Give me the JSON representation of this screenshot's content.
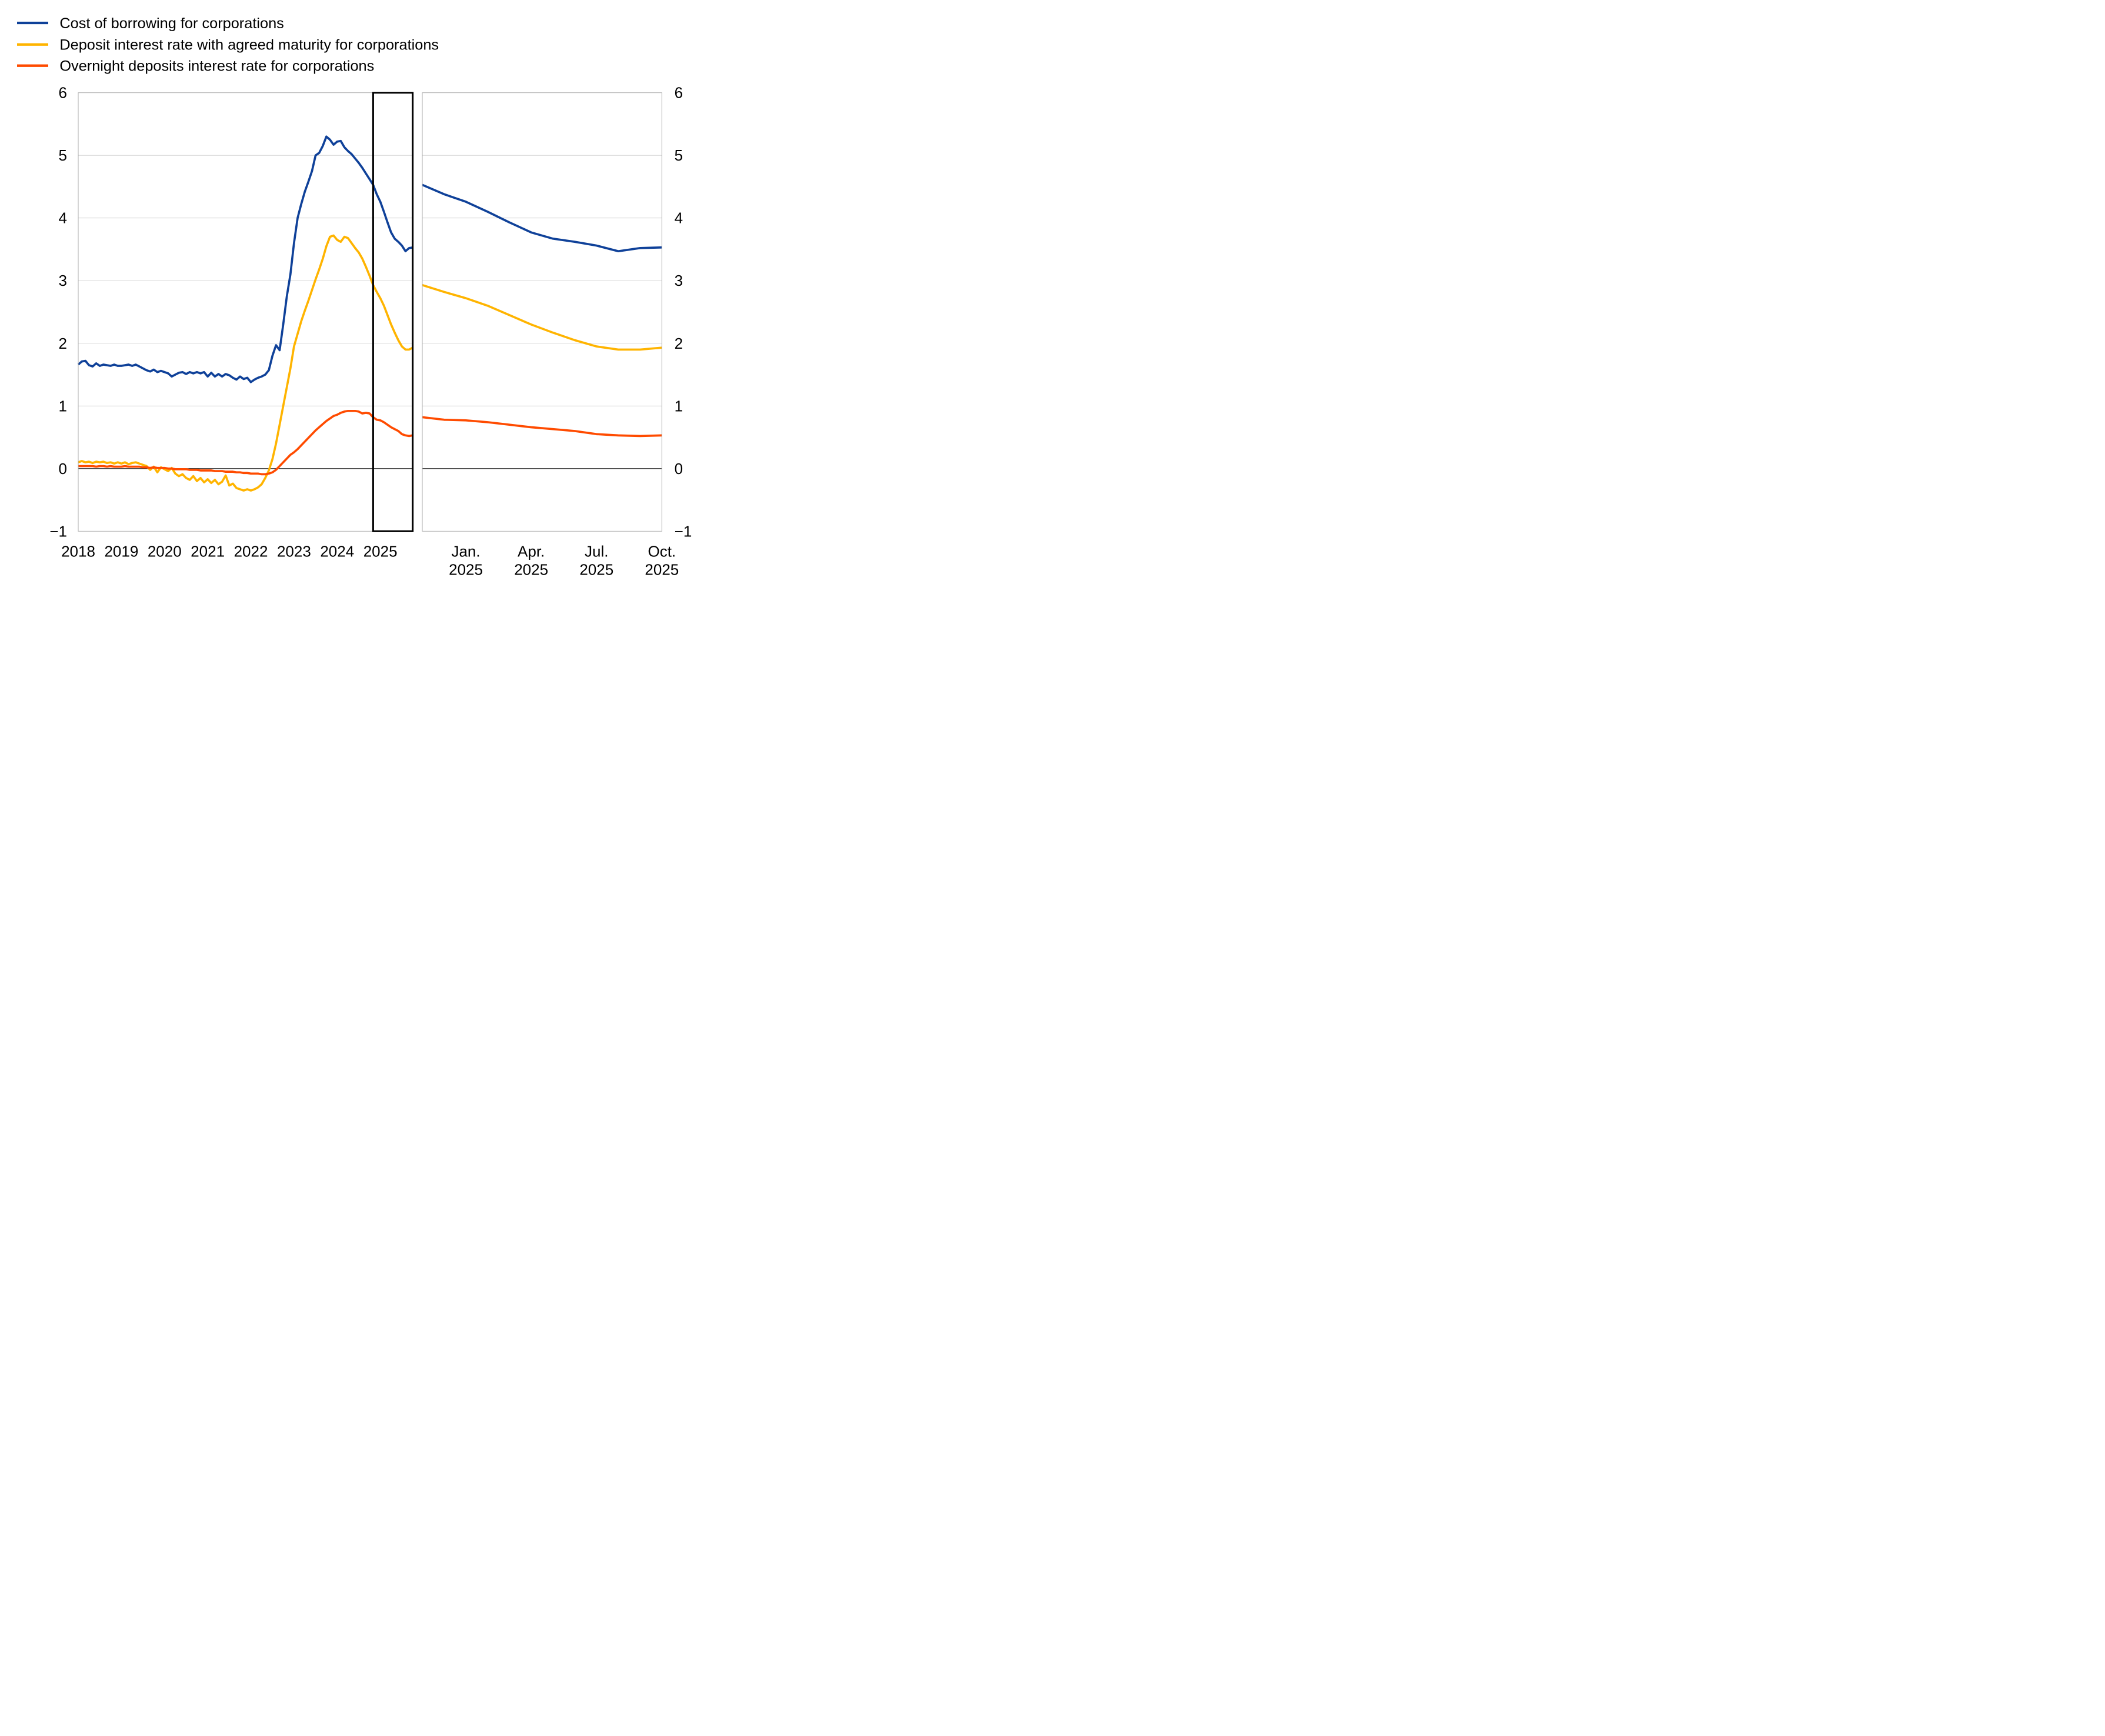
{
  "legend": {
    "items": [
      {
        "id": "cost-of-borrowing",
        "label": "Cost of borrowing for corporations",
        "color": "#0F4199"
      },
      {
        "id": "deposit-agreed-maturity",
        "label": "Deposit interest rate with agreed maturity for corporations",
        "color": "#FFB400"
      },
      {
        "id": "overnight-deposits",
        "label": "Overnight deposits interest rate for corporations",
        "color": "#FF4B00"
      }
    ]
  },
  "y_axis": {
    "min": -1,
    "max": 6,
    "tick_values": [
      6,
      5,
      4,
      3,
      2,
      1,
      0,
      -1
    ],
    "tick_labels": [
      "6",
      "5",
      "4",
      "3",
      "2",
      "1",
      "0",
      "−1"
    ]
  },
  "left_panel_axis": {
    "x_tick_labels": [
      "2018",
      "2019",
      "2020",
      "2021",
      "2022",
      "2023",
      "2024",
      "2025"
    ]
  },
  "right_panel_axis": {
    "x_tick_labels": [
      {
        "line1": "Jan.",
        "line2": "2025"
      },
      {
        "line1": "Apr.",
        "line2": "2025"
      },
      {
        "line1": "Jul.",
        "line2": "2025"
      },
      {
        "line1": "Oct.",
        "line2": "2025"
      }
    ]
  },
  "style": {
    "background": "#FFFFFF",
    "gridline": "#C9C9C9",
    "panel_border": "#ABABAB",
    "zero_line": "#000000",
    "highlight_border": "#000000",
    "text": "#000000"
  },
  "chart_data": [
    {
      "type": "line",
      "panel": "left",
      "title": "",
      "x_start": "2018-01",
      "x_end": "2025-10",
      "x_frequency": "monthly",
      "xlabel": "",
      "ylabel": "",
      "ylim": [
        -1,
        6
      ],
      "grid": true,
      "legend_position": "top-left",
      "highlight_window": {
        "start": "2024-11",
        "end": "2025-10"
      },
      "series": [
        {
          "name": "Cost of borrowing for corporations",
          "color": "#0F4199",
          "values": [
            1.66,
            1.71,
            1.72,
            1.65,
            1.63,
            1.68,
            1.64,
            1.66,
            1.65,
            1.64,
            1.66,
            1.64,
            1.64,
            1.65,
            1.66,
            1.64,
            1.66,
            1.63,
            1.6,
            1.57,
            1.55,
            1.58,
            1.54,
            1.56,
            1.54,
            1.52,
            1.47,
            1.5,
            1.53,
            1.54,
            1.51,
            1.54,
            1.52,
            1.54,
            1.52,
            1.54,
            1.47,
            1.53,
            1.47,
            1.51,
            1.47,
            1.51,
            1.49,
            1.45,
            1.42,
            1.47,
            1.43,
            1.45,
            1.38,
            1.42,
            1.45,
            1.47,
            1.5,
            1.57,
            1.8,
            1.97,
            1.89,
            2.3,
            2.75,
            3.1,
            3.6,
            4.0,
            4.22,
            4.42,
            4.58,
            4.75,
            5.0,
            5.04,
            5.15,
            5.3,
            5.25,
            5.17,
            5.22,
            5.23,
            5.13,
            5.07,
            5.02,
            4.95,
            4.88,
            4.8,
            4.71,
            4.62,
            4.53,
            4.38,
            4.26,
            4.1,
            3.93,
            3.77,
            3.67,
            3.62,
            3.56,
            3.47,
            3.52,
            3.53
          ]
        },
        {
          "name": "Deposit interest rate with agreed maturity for corporations",
          "color": "#FFB400",
          "values": [
            0.1,
            0.12,
            0.1,
            0.11,
            0.09,
            0.11,
            0.1,
            0.11,
            0.09,
            0.1,
            0.08,
            0.1,
            0.08,
            0.1,
            0.07,
            0.09,
            0.1,
            0.08,
            0.06,
            0.04,
            -0.02,
            0.03,
            -0.06,
            0.02,
            -0.01,
            -0.04,
            0.01,
            -0.08,
            -0.12,
            -0.09,
            -0.15,
            -0.18,
            -0.12,
            -0.2,
            -0.15,
            -0.22,
            -0.17,
            -0.23,
            -0.18,
            -0.25,
            -0.21,
            -0.11,
            -0.27,
            -0.24,
            -0.31,
            -0.33,
            -0.35,
            -0.33,
            -0.35,
            -0.33,
            -0.3,
            -0.25,
            -0.15,
            -0.03,
            0.15,
            0.4,
            0.7,
            1.0,
            1.3,
            1.6,
            1.95,
            2.15,
            2.35,
            2.52,
            2.68,
            2.85,
            3.02,
            3.18,
            3.35,
            3.55,
            3.7,
            3.72,
            3.65,
            3.62,
            3.7,
            3.68,
            3.6,
            3.52,
            3.45,
            3.35,
            3.22,
            3.08,
            2.93,
            2.82,
            2.72,
            2.6,
            2.45,
            2.3,
            2.17,
            2.05,
            1.95,
            1.9,
            1.9,
            1.93
          ]
        },
        {
          "name": "Overnight deposits interest rate for corporations",
          "color": "#FF4B00",
          "values": [
            0.04,
            0.04,
            0.04,
            0.04,
            0.04,
            0.03,
            0.04,
            0.04,
            0.03,
            0.04,
            0.03,
            0.03,
            0.03,
            0.04,
            0.03,
            0.03,
            0.03,
            0.03,
            0.02,
            0.02,
            0.01,
            0.02,
            0.01,
            0.01,
            0.01,
            0.0,
            0.0,
            -0.01,
            -0.01,
            -0.01,
            -0.01,
            -0.02,
            -0.02,
            -0.02,
            -0.03,
            -0.03,
            -0.03,
            -0.03,
            -0.04,
            -0.04,
            -0.04,
            -0.05,
            -0.05,
            -0.05,
            -0.06,
            -0.06,
            -0.07,
            -0.07,
            -0.08,
            -0.08,
            -0.08,
            -0.09,
            -0.09,
            -0.08,
            -0.06,
            -0.02,
            0.04,
            0.1,
            0.16,
            0.22,
            0.26,
            0.31,
            0.37,
            0.43,
            0.49,
            0.55,
            0.61,
            0.66,
            0.71,
            0.76,
            0.8,
            0.84,
            0.86,
            0.89,
            0.91,
            0.92,
            0.92,
            0.92,
            0.91,
            0.88,
            0.89,
            0.88,
            0.82,
            0.78,
            0.77,
            0.74,
            0.7,
            0.66,
            0.63,
            0.6,
            0.55,
            0.53,
            0.52,
            0.53
          ]
        }
      ]
    },
    {
      "type": "line",
      "panel": "right",
      "title": "",
      "x_start": "2024-11",
      "x_end": "2025-10",
      "x_frequency": "monthly",
      "xlabel": "",
      "ylabel": "",
      "ylim": [
        -1,
        6
      ],
      "grid": true,
      "series": [
        {
          "name": "Cost of borrowing for corporations",
          "color": "#0F4199",
          "values": [
            4.53,
            4.38,
            4.26,
            4.1,
            3.93,
            3.77,
            3.67,
            3.62,
            3.56,
            3.47,
            3.52,
            3.53
          ]
        },
        {
          "name": "Deposit interest rate with agreed maturity for corporations",
          "color": "#FFB400",
          "values": [
            2.93,
            2.82,
            2.72,
            2.6,
            2.45,
            2.3,
            2.17,
            2.05,
            1.95,
            1.9,
            1.9,
            1.93
          ]
        },
        {
          "name": "Overnight deposits interest rate for corporations",
          "color": "#FF4B00",
          "values": [
            0.82,
            0.78,
            0.77,
            0.74,
            0.7,
            0.66,
            0.63,
            0.6,
            0.55,
            0.53,
            0.52,
            0.53
          ]
        }
      ]
    }
  ]
}
